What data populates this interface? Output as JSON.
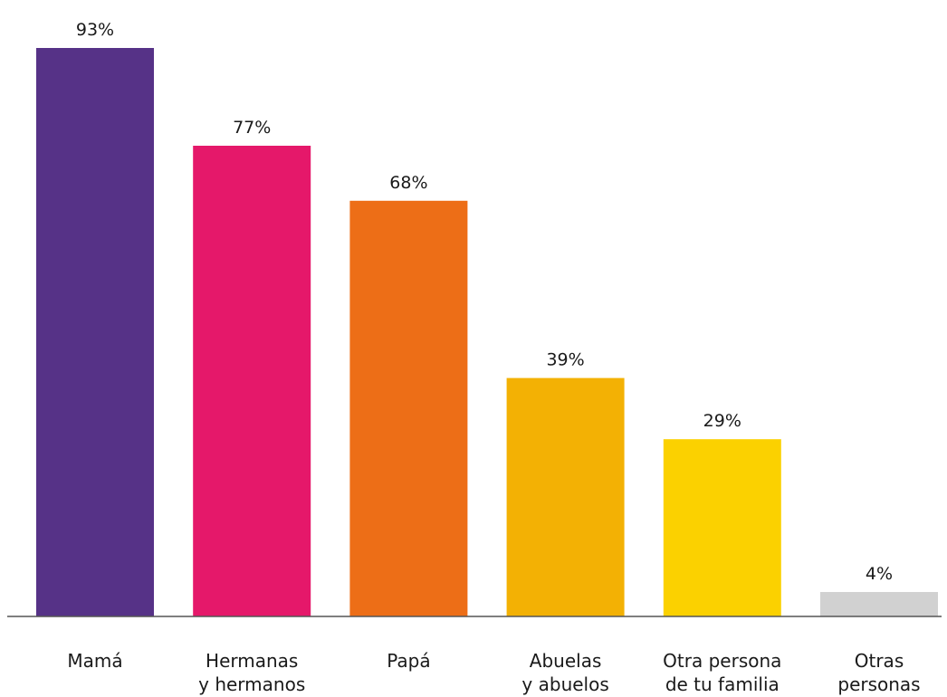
{
  "chart_data": {
    "type": "bar",
    "categories": [
      [
        "Mamá"
      ],
      [
        "Hermanas",
        "y hermanos"
      ],
      [
        "Papá"
      ],
      [
        "Abuelas",
        "y abuelos"
      ],
      [
        "Otra persona",
        "de tu familia"
      ],
      [
        "Otras",
        "personas"
      ]
    ],
    "values": [
      93,
      77,
      68,
      39,
      29,
      4
    ],
    "value_labels": [
      "93%",
      "77%",
      "68%",
      "39%",
      "29%",
      "4%"
    ],
    "colors": [
      "#563287",
      "#e5186a",
      "#ed6e17",
      "#f3b104",
      "#fbd100",
      "#d1d1d1"
    ],
    "ylim": [
      0,
      93
    ],
    "grid": false,
    "legend": "none",
    "axis_color": "#555555"
  }
}
